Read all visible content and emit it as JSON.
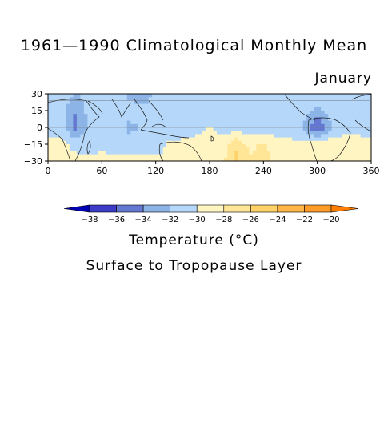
{
  "title": "1961—1990 Climatological Monthly Mean",
  "month": "January",
  "colorbar_title": "Temperature (°C)",
  "colorbar_subtitle": "Surface to Tropopause Layer",
  "chart_data": {
    "type": "heatmap",
    "title": "1961—1990 Climatological Monthly Mean",
    "subtitle": "January",
    "xlabel": "",
    "ylabel": "",
    "xlim": [
      0,
      360
    ],
    "ylim": [
      -30,
      30
    ],
    "x_ticks": [
      0,
      60,
      120,
      180,
      240,
      300,
      360
    ],
    "y_ticks": [
      -30,
      -15,
      0,
      15,
      30
    ],
    "x_tick_labels": [
      "0",
      "60",
      "120",
      "180",
      "240",
      "300",
      "360"
    ],
    "y_tick_labels": [
      "−30",
      "−15",
      "0",
      "15",
      "30"
    ],
    "colorbar": {
      "levels": [
        -38,
        -36,
        -34,
        -32,
        -30,
        -28,
        -26,
        -24,
        -22,
        -20
      ],
      "labels": [
        "−38",
        "−36",
        "−34",
        "−32",
        "−30",
        "−28",
        "−26",
        "−24",
        "−22",
        "−20"
      ],
      "colors": [
        "#0000b4",
        "#3c3cc8",
        "#6478d2",
        "#8cb4e6",
        "#b4d7fa",
        "#fff5c3",
        "#ffe696",
        "#ffd269",
        "#ffb446",
        "#ff9b28",
        "#ff7d00"
      ]
    },
    "field": {
      "lons": [
        0,
        15,
        30,
        45,
        60,
        75,
        90,
        105,
        120,
        135,
        150,
        165,
        180,
        195,
        210,
        225,
        240,
        255,
        270,
        285,
        300,
        315,
        330,
        345,
        360
      ],
      "lats": [
        30,
        15,
        0,
        -15,
        -30
      ],
      "values": [
        [
          -30.5,
          -30.5,
          -32.2,
          -31.0,
          -30.5,
          -31.0,
          -32.5,
          -34.2,
          -31.0,
          -30.5,
          -30.5,
          -30.5,
          -30.5,
          -30.5,
          -30.5,
          -30.5,
          -30.5,
          -30.5,
          -30.5,
          -30.5,
          -30.5,
          -30.5,
          -30.5,
          -30.5,
          -30.5
        ],
        [
          -31.0,
          -31.0,
          -33.8,
          -31.5,
          -31.0,
          -31.0,
          -31.0,
          -31.0,
          -31.0,
          -31.0,
          -31.0,
          -31.0,
          -31.0,
          -31.0,
          -31.0,
          -31.0,
          -29.8,
          -31.0,
          -31.0,
          -31.0,
          -32.5,
          -31.0,
          -31.0,
          -31.0,
          -31.0
        ],
        [
          -31.0,
          -31.0,
          -35.0,
          -31.5,
          -31.0,
          -31.0,
          -32.5,
          -32.0,
          -31.0,
          -31.0,
          -31.0,
          -31.0,
          -29.8,
          -31.0,
          -31.0,
          -31.0,
          -31.0,
          -31.0,
          -31.0,
          -32.2,
          -36.5,
          -32.2,
          -31.0,
          -31.0,
          -31.0
        ],
        [
          -29.5,
          -29.5,
          -30.5,
          -31.0,
          -31.0,
          -31.0,
          -31.0,
          -31.0,
          -31.0,
          -29.8,
          -29.5,
          -29.0,
          -28.8,
          -28.8,
          -26.5,
          -28.8,
          -27.5,
          -29.5,
          -29.5,
          -29.5,
          -28.8,
          -28.8,
          -28.8,
          -28.8,
          -29.5
        ],
        [
          -29.5,
          -29.5,
          -29.5,
          -29.5,
          -28.8,
          -29.5,
          -29.5,
          -29.5,
          -29.5,
          -29.5,
          -29.5,
          -28.8,
          -28.5,
          -28.5,
          -25.5,
          -27.5,
          -26.8,
          -28.8,
          -28.5,
          -28.8,
          -28.5,
          -28.8,
          -28.8,
          -29.5,
          -29.5
        ]
      ]
    }
  }
}
